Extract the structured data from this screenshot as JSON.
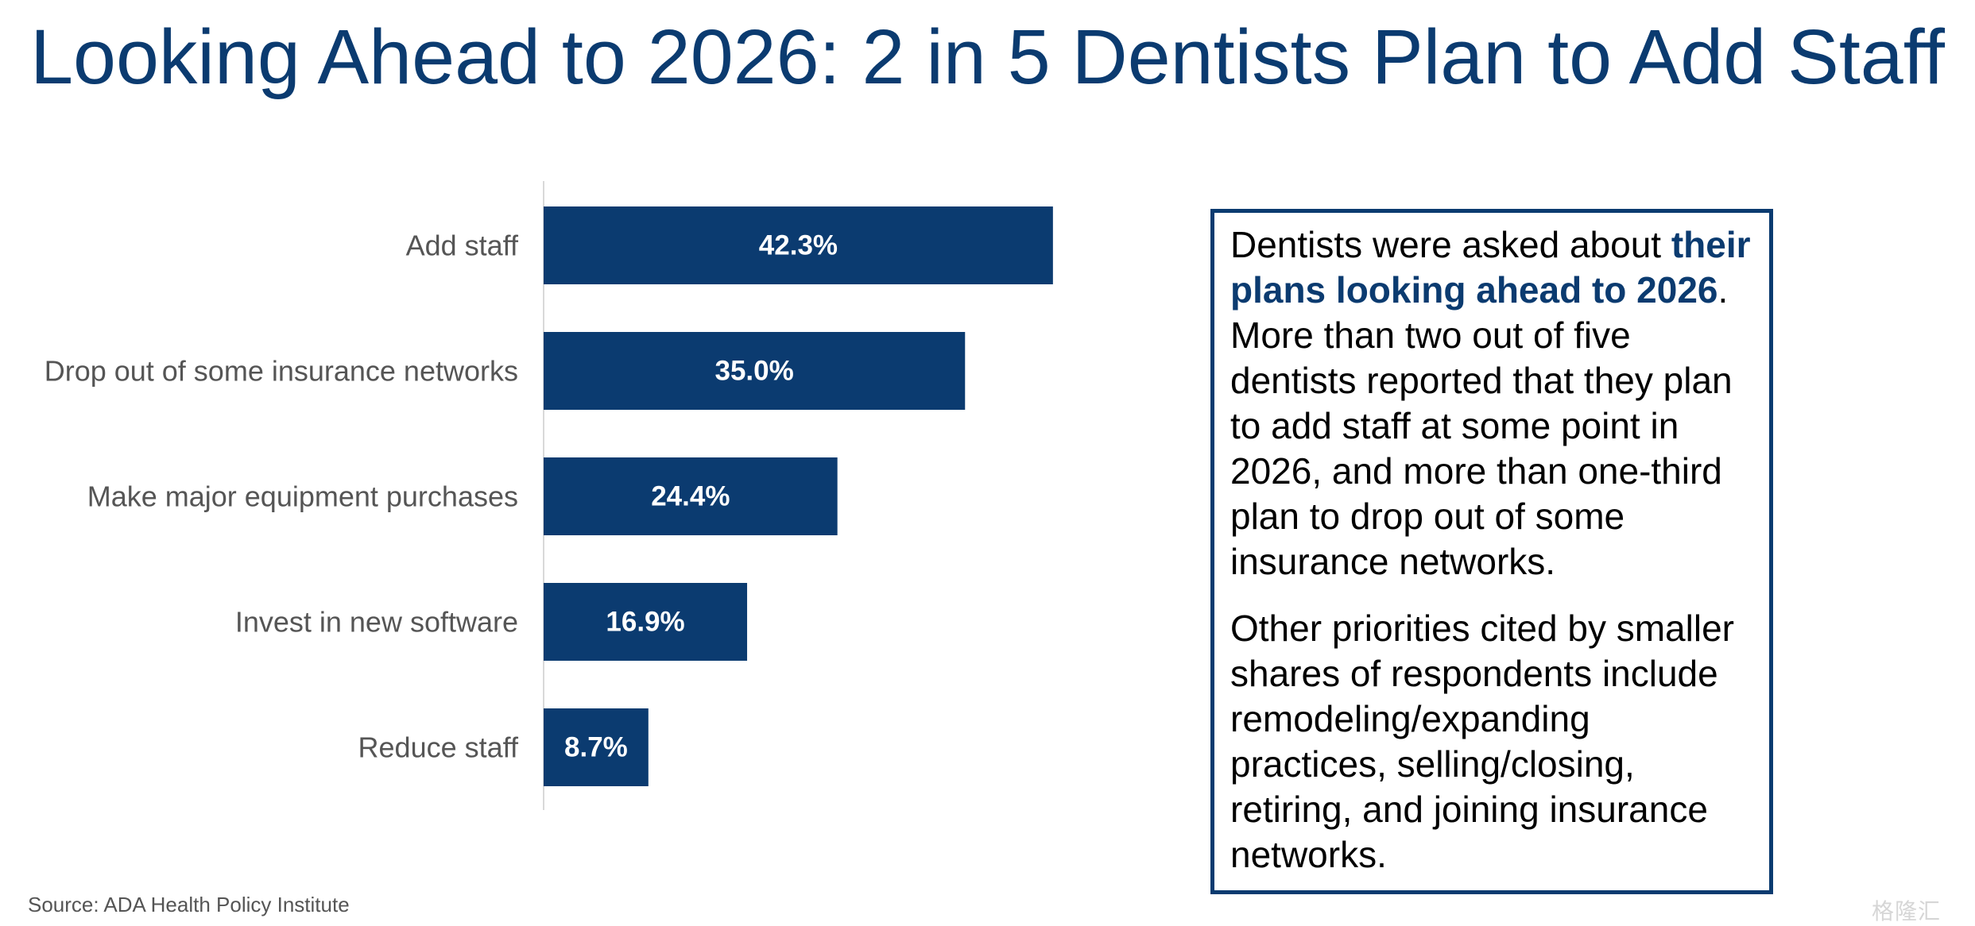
{
  "title": "Looking Ahead to 2026: 2 in 5 Dentists Plan to Add Staff",
  "chart_data": {
    "type": "bar",
    "orientation": "horizontal",
    "categories": [
      "Add staff",
      "Drop out of some insurance networks",
      "Make major equipment purchases",
      "Invest in new software",
      "Reduce staff"
    ],
    "values": [
      42.3,
      35.0,
      24.4,
      16.9,
      8.7
    ],
    "value_labels": [
      "42.3%",
      "35.0%",
      "24.4%",
      "16.9%",
      "8.7%"
    ],
    "unit": "%",
    "xlim": [
      0,
      100
    ],
    "grid": false,
    "legend": "none",
    "bar_color": "#0b3b70"
  },
  "textbox": {
    "p1_pre": "Dentists were asked about ",
    "p1_highlight": "their plans looking ahead to 2026",
    "p1_post": ". More than two out of five dentists reported that they plan to add staff at some point in 2026, and more than one-third plan to drop out of some insurance networks.",
    "p2": "Other priorities cited by smaller shares of respondents include remodeling/expanding practices, selling/closing, retiring, and joining insurance networks."
  },
  "source": "Source: ADA Health Policy Institute",
  "watermark": "格隆汇",
  "colors": {
    "title": "#0b3b70",
    "bar": "#0b3b70",
    "border": "#0b3b70",
    "highlight": "#0b3b70"
  }
}
